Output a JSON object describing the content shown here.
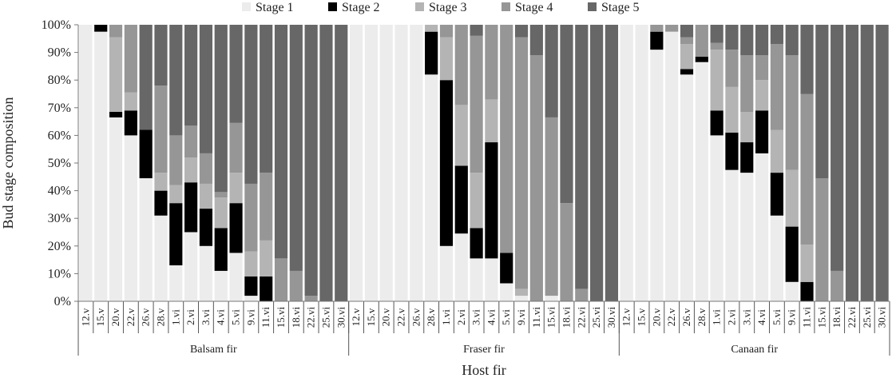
{
  "chart_data": {
    "type": "bar",
    "stacked": true,
    "percent": true,
    "ylabel": "Bud stage composition",
    "xlabel": "Host fir",
    "ylim": [
      0,
      100
    ],
    "yticks": [
      "0%",
      "10%",
      "20%",
      "30%",
      "40%",
      "50%",
      "60%",
      "70%",
      "80%",
      "90%",
      "100%"
    ],
    "legend": {
      "position": "top",
      "entries": [
        "Stage 1",
        "Stage 2",
        "Stage 3",
        "Stage 4",
        "Stage 5"
      ]
    },
    "colors": {
      "Stage 1": "#ececec",
      "Stage 2": "#000000",
      "Stage 3": "#b4b4b4",
      "Stage 4": "#969696",
      "Stage 5": "#676767"
    },
    "groups": [
      {
        "name": "Balsam fir",
        "categories": [
          "12.v",
          "15.v",
          "20.v",
          "22.v",
          "26.v",
          "28.v",
          "1.vi",
          "2.vi",
          "3.vi",
          "4.vi",
          "5.vi",
          "9.vi",
          "11.vi",
          "15.vi",
          "18.vi",
          "22.vi",
          "25.vi",
          "30.vi"
        ],
        "series": [
          {
            "name": "Stage 1",
            "values": [
              100,
              97.5,
              66.5,
              60,
              44.5,
              31,
              13,
              25,
              20,
              11,
              17.5,
              2,
              0,
              0,
              0,
              0,
              0,
              0
            ]
          },
          {
            "name": "Stage 2",
            "values": [
              0,
              2.5,
              2,
              9,
              17.5,
              9,
              22.5,
              18,
              13.5,
              15.5,
              18,
              7,
              9,
              0,
              0,
              0,
              0,
              0
            ]
          },
          {
            "name": "Stage 3",
            "values": [
              0,
              0,
              27,
              6.5,
              0,
              6.5,
              6.5,
              9,
              9,
              11,
              11,
              9,
              13,
              0,
              0,
              0,
              0,
              0
            ]
          },
          {
            "name": "Stage 4",
            "values": [
              0,
              0,
              4.5,
              24.5,
              0,
              31.5,
              18,
              11.5,
              11,
              2,
              18,
              24.5,
              24.5,
              15.5,
              11,
              2,
              0,
              0
            ]
          },
          {
            "name": "Stage 5",
            "values": [
              0,
              0,
              0,
              0,
              38,
              22,
              40,
              36.5,
              46.5,
              60.5,
              35.5,
              57.5,
              53.5,
              84.5,
              89,
              98,
              100,
              100
            ]
          }
        ]
      },
      {
        "name": "Fraser fir",
        "categories": [
          "12.v",
          "15.v",
          "20.v",
          "22.v",
          "26.v",
          "28.v",
          "1.vi",
          "2.vi",
          "3.vi",
          "4.vi",
          "5.vi",
          "9.vi",
          "11.vi",
          "15.vi",
          "18.vi",
          "22.vi",
          "25.vi",
          "30.vi"
        ],
        "series": [
          {
            "name": "Stage 1",
            "values": [
              100,
              100,
              100,
              100,
              100,
              82,
              20,
              24.5,
              15.5,
              15.5,
              6.5,
              2,
              0,
              2,
              0,
              0,
              0,
              0
            ]
          },
          {
            "name": "Stage 2",
            "values": [
              0,
              0,
              0,
              0,
              0,
              15.5,
              60,
              24.5,
              11,
              42,
              11,
              0,
              0,
              0,
              0,
              0,
              0,
              0
            ]
          },
          {
            "name": "Stage 3",
            "values": [
              0,
              0,
              0,
              0,
              0,
              2.5,
              15.5,
              22,
              20,
              15.5,
              0,
              2.5,
              0,
              0,
              0,
              0,
              0,
              0
            ]
          },
          {
            "name": "Stage 4",
            "values": [
              0,
              0,
              0,
              0,
              0,
              0,
              4.5,
              29,
              49.5,
              27,
              82.5,
              91,
              89,
              64.5,
              35.5,
              4.5,
              0,
              0
            ]
          },
          {
            "name": "Stage 5",
            "values": [
              0,
              0,
              0,
              0,
              0,
              0,
              0,
              0,
              4,
              0,
              0,
              4.5,
              11,
              33.5,
              64.5,
              95.5,
              100,
              100
            ]
          }
        ]
      },
      {
        "name": "Canaan fir",
        "categories": [
          "12.v",
          "15.v",
          "20.v",
          "22.v",
          "26.v",
          "28.v",
          "1.vi",
          "2.vi",
          "3.vi",
          "4.vi",
          "5.vi",
          "9.vi",
          "11.vi",
          "15.vi",
          "18.vi",
          "22.vi",
          "25.vi",
          "30.vi"
        ],
        "series": [
          {
            "name": "Stage 1",
            "values": [
              100,
              100,
              91,
              97.5,
              82,
              86.5,
              60,
              47.5,
              46.5,
              53.5,
              31,
              7,
              0,
              0,
              0,
              0,
              0,
              0
            ]
          },
          {
            "name": "Stage 2",
            "values": [
              0,
              0,
              6.5,
              0,
              2,
              2,
              9,
              13.5,
              11,
              15.5,
              15.5,
              20,
              7,
              0,
              0,
              0,
              0,
              0
            ]
          },
          {
            "name": "Stage 3",
            "values": [
              0,
              0,
              0,
              0,
              9,
              0,
              22,
              16.5,
              11,
              11,
              15.5,
              20.5,
              13.5,
              0,
              0,
              0,
              0,
              0
            ]
          },
          {
            "name": "Stage 4",
            "values": [
              0,
              0,
              2.5,
              2.5,
              2.5,
              11.5,
              2.5,
              13.5,
              20.5,
              9,
              31,
              41.5,
              54.5,
              44.5,
              11,
              0,
              0,
              0
            ]
          },
          {
            "name": "Stage 5",
            "values": [
              0,
              0,
              0,
              0,
              4.5,
              0,
              6.5,
              9,
              11,
              11,
              7,
              11,
              25,
              55.5,
              89,
              100,
              100,
              100
            ]
          }
        ]
      }
    ]
  }
}
